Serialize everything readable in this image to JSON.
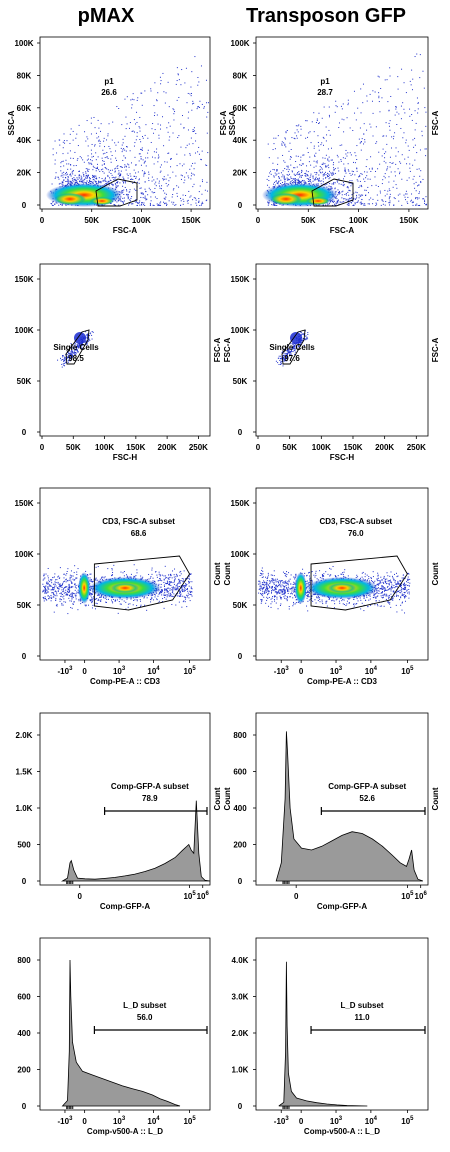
{
  "columns": [
    {
      "title": "pMAX"
    },
    {
      "title": "Transposon GFP"
    }
  ],
  "chart_data": [
    {
      "type": "scatter",
      "row": 0,
      "col": 0,
      "xlabel": "FSC-A",
      "ylabel": "SSC-A",
      "right_label": "",
      "xticks": [
        "0",
        "50K",
        "100K",
        "150K"
      ],
      "yticks": [
        "0",
        "20K",
        "40K",
        "60K",
        "80K",
        "100K"
      ],
      "xlim": [
        0,
        165000
      ],
      "ylim": [
        -5000,
        105000
      ],
      "gate": {
        "name": "p1",
        "value": "26.6"
      }
    },
    {
      "type": "scatter",
      "row": 0,
      "col": 1,
      "xlabel": "FSC-A",
      "ylabel": "FSC-A\nSSC-A",
      "right_label": "FSC-A",
      "xticks": [
        "0",
        "50K",
        "100K",
        "150K"
      ],
      "yticks": [
        "0",
        "20K",
        "40K",
        "60K",
        "80K",
        "100K"
      ],
      "xlim": [
        0,
        165000
      ],
      "ylim": [
        -5000,
        105000
      ],
      "gate": {
        "name": "p1",
        "value": "28.7"
      }
    },
    {
      "type": "scatter",
      "row": 1,
      "col": 0,
      "xlabel": "FSC-H",
      "ylabel": "",
      "right_label": "FSC-A",
      "xticks": [
        "0",
        "50K",
        "100K",
        "150K",
        "200K",
        "250K"
      ],
      "yticks": [
        "0",
        "50K",
        "100K",
        "150K"
      ],
      "xlim": [
        0,
        262144
      ],
      "ylim": [
        -5000,
        170000
      ],
      "gate": {
        "name": "Single Cells",
        "value": "98.5"
      }
    },
    {
      "type": "scatter",
      "row": 1,
      "col": 1,
      "xlabel": "FSC-H",
      "ylabel": "FSC-A",
      "right_label": "FSC-A",
      "xticks": [
        "0",
        "50K",
        "100K",
        "150K",
        "200K",
        "250K"
      ],
      "yticks": [
        "0",
        "50K",
        "100K",
        "150K"
      ],
      "xlim": [
        0,
        262144
      ],
      "ylim": [
        -5000,
        170000
      ],
      "gate": {
        "name": "Single Cells",
        "value": "97.6"
      }
    },
    {
      "type": "scatter",
      "row": 2,
      "col": 0,
      "xlabel": "Comp-PE-A :: CD3",
      "ylabel": "",
      "right_label": "Count",
      "xticks": [
        "-10^3",
        "0",
        "10^3",
        "10^4",
        "10^5"
      ],
      "yticks": [
        "0",
        "50K",
        "100K",
        "150K"
      ],
      "xscale": "biexponential",
      "ylim": [
        -5000,
        170000
      ],
      "gate": {
        "name": "CD3, FSC-A subset",
        "value": "68.6"
      }
    },
    {
      "type": "scatter",
      "row": 2,
      "col": 1,
      "xlabel": "Comp-PE-A :: CD3",
      "ylabel": "Count",
      "right_label": "Count",
      "xticks": [
        "-10^3",
        "0",
        "10^3",
        "10^4",
        "10^5"
      ],
      "yticks": [
        "0",
        "50K",
        "100K",
        "150K"
      ],
      "xscale": "biexponential",
      "ylim": [
        -5000,
        170000
      ],
      "gate": {
        "name": "CD3, FSC-A subset",
        "value": "76.0"
      }
    },
    {
      "type": "area",
      "row": 3,
      "col": 0,
      "xlabel": "Comp-GFP-A",
      "ylabel": "",
      "right_label": "Count",
      "xticks": [
        "0",
        "10^5",
        "10^6"
      ],
      "yticks": [
        "0",
        "500",
        "1.0K",
        "1.5K",
        "2.0K"
      ],
      "xscale": "biexponential",
      "ylim": [
        0,
        2200
      ],
      "gate": {
        "name": "Comp-GFP-A subset",
        "value": "78.9"
      },
      "series": [
        {
          "x": [
            -0.3,
            -0.1,
            0,
            0.05,
            0.15,
            0.3,
            0.6,
            1.0,
            1.4,
            1.8,
            2.2,
            2.6,
            3.0,
            3.4,
            3.8,
            4.2,
            4.5,
            4.75,
            4.85,
            4.95,
            5.05,
            5.15,
            5.25,
            5.4,
            5.6
          ],
          "y": [
            0,
            40,
            250,
            280,
            150,
            40,
            30,
            25,
            35,
            50,
            70,
            95,
            130,
            175,
            240,
            320,
            420,
            500,
            420,
            380,
            1100,
            380,
            60,
            10,
            0
          ]
        }
      ]
    },
    {
      "type": "area",
      "row": 3,
      "col": 1,
      "xlabel": "Comp-GFP-A",
      "ylabel": "Count",
      "right_label": "Count",
      "xticks": [
        "0",
        "10^5",
        "10^6"
      ],
      "yticks": [
        "0",
        "200",
        "400",
        "600",
        "800"
      ],
      "xscale": "biexponential",
      "ylim": [
        0,
        920
      ],
      "gate": {
        "name": "Comp-GFP-A subset",
        "value": "52.6"
      },
      "series": [
        {
          "x": [
            -0.4,
            -0.2,
            -0.05,
            0,
            0.05,
            0.15,
            0.3,
            0.6,
            1.0,
            1.4,
            1.8,
            2.2,
            2.6,
            3.0,
            3.4,
            3.8,
            4.2,
            4.5,
            4.75,
            4.85,
            4.95,
            5.05,
            5.2,
            5.4
          ],
          "y": [
            0,
            100,
            450,
            820,
            700,
            400,
            230,
            180,
            170,
            190,
            220,
            250,
            270,
            260,
            230,
            190,
            140,
            100,
            80,
            120,
            170,
            60,
            10,
            0
          ]
        }
      ]
    },
    {
      "type": "area",
      "row": 4,
      "col": 0,
      "xlabel": "Comp-v500-A :: L_D",
      "ylabel": "",
      "right_label": "",
      "xticks": [
        "-10^3",
        "0",
        "10^3",
        "10^4",
        "10^5"
      ],
      "yticks": [
        "0",
        "200",
        "400",
        "600",
        "800"
      ],
      "xscale": "biexponential",
      "ylim": [
        0,
        880
      ],
      "gate": {
        "name": "L_D subset",
        "value": "56.0"
      },
      "series": [
        {
          "x": [
            -0.3,
            -0.1,
            -0.03,
            0,
            0.03,
            0.1,
            0.25,
            0.5,
            0.9,
            1.3,
            1.7,
            2.1,
            2.5,
            2.9,
            3.3,
            3.6,
            3.9,
            4.2,
            4.4
          ],
          "y": [
            0,
            30,
            300,
            800,
            600,
            350,
            240,
            190,
            170,
            150,
            130,
            110,
            95,
            80,
            60,
            40,
            25,
            8,
            0
          ]
        }
      ]
    },
    {
      "type": "area",
      "row": 4,
      "col": 1,
      "xlabel": "Comp-v500-A :: L_D",
      "ylabel": "",
      "right_label": "",
      "xticks": [
        "-10^3",
        "0",
        "10^3",
        "10^4",
        "10^5"
      ],
      "yticks": [
        "0",
        "1.0K",
        "2.0K",
        "3.0K",
        "4.0K"
      ],
      "xscale": "biexponential",
      "ylim": [
        0,
        4400
      ],
      "gate": {
        "name": "L_D subset",
        "value": "11.0"
      },
      "series": [
        {
          "x": [
            -0.3,
            -0.1,
            -0.03,
            0,
            0.03,
            0.08,
            0.2,
            0.4,
            0.8,
            1.2,
            1.6,
            2.0,
            2.4,
            2.8,
            3.2
          ],
          "y": [
            0,
            100,
            1500,
            3950,
            2200,
            900,
            400,
            220,
            140,
            90,
            55,
            30,
            15,
            5,
            0
          ]
        }
      ]
    }
  ]
}
